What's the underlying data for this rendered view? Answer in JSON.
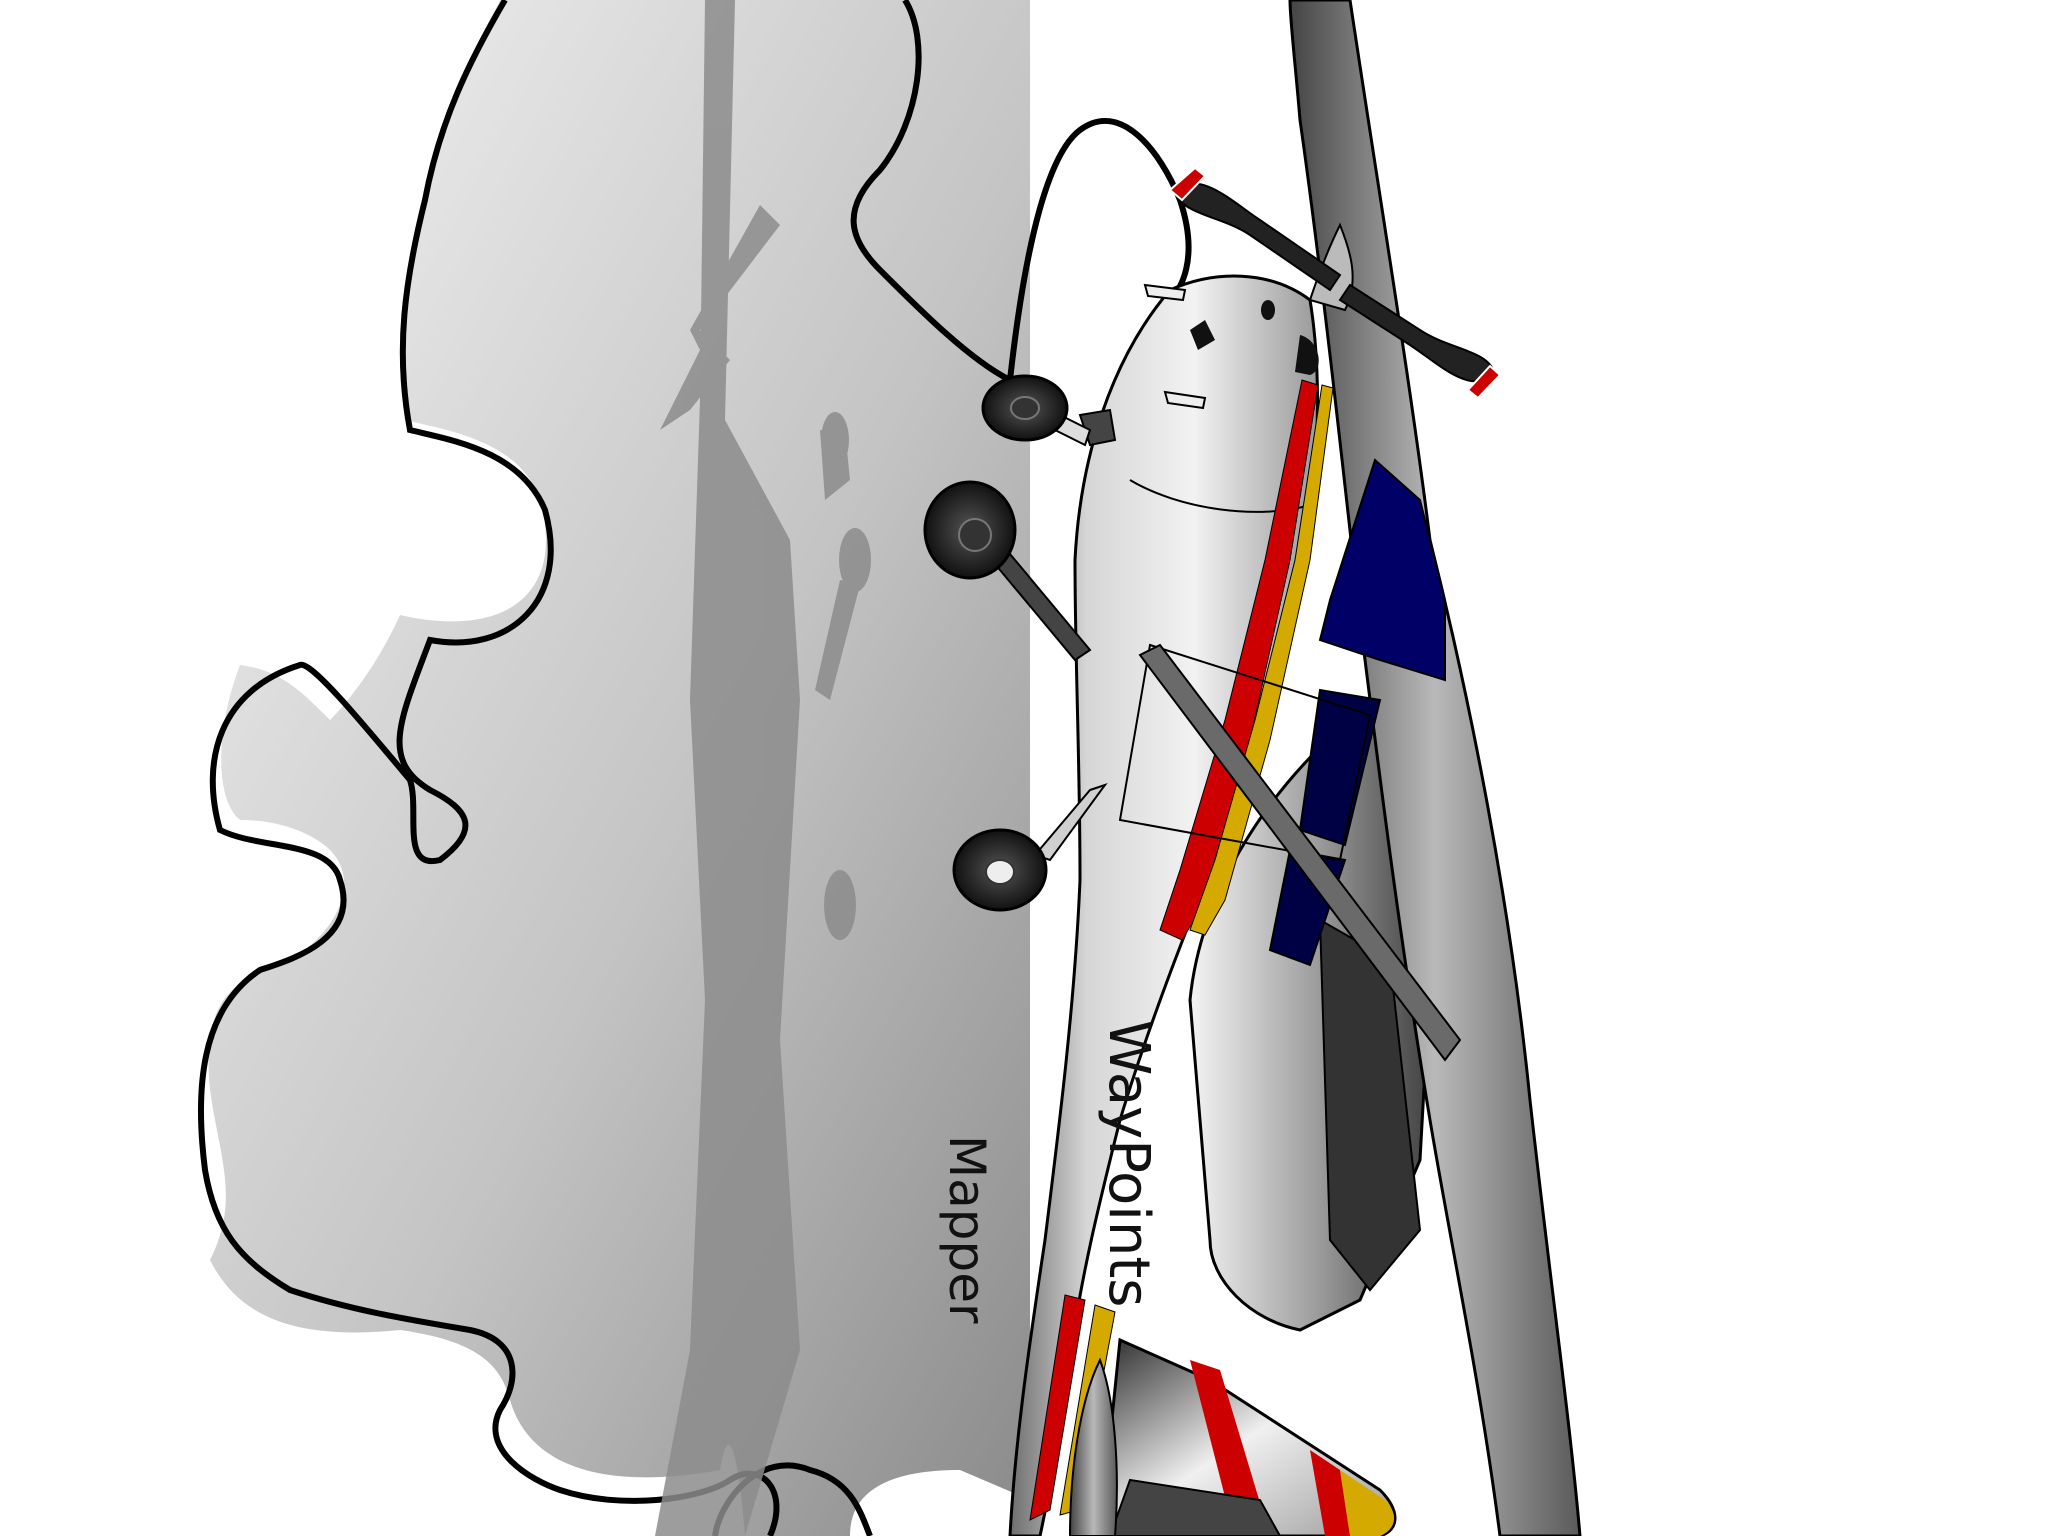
{
  "aircraft": {
    "livery_title": "WayPoints",
    "livery_subtitle": "Mapper",
    "colors": {
      "stripe_red": "#cc0000",
      "stripe_yellow": "#d4aa00",
      "window_navy": "#000066",
      "fuselage": "#cfcfcf",
      "wing_dark": "#3a3a3a",
      "outline": "#000000",
      "shadow": "#8c8c8c"
    }
  },
  "background": {
    "shape": "puzzle-piece",
    "gradient_light": "#f5f5f5",
    "gradient_dark": "#8a8a8a"
  }
}
